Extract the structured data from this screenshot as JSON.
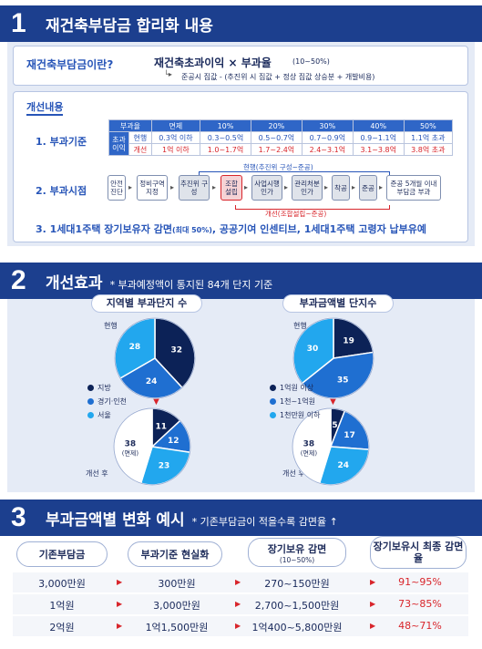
{
  "section1": {
    "num": "1",
    "title": "재건축부담금 합리화 내용",
    "definition_label": "재건축부담금이란?",
    "formula_main": "재건축초과이익 × 부과율",
    "formula_rate": "(10~50%)",
    "formula_note": "준공시 집값 - (추진위 시 집값 + 정상 집값 상승분 + 개발비용)",
    "improve_title": "개선내용",
    "item1_label": "1. 부과기준",
    "table": {
      "header": [
        "부과율",
        "면제",
        "10%",
        "20%",
        "30%",
        "40%",
        "50%"
      ],
      "row_group": "초과이익",
      "rows": [
        {
          "label": "현행",
          "cells": [
            "0.3억 이하",
            "0.3~0.5억",
            "0.5~0.7억",
            "0.7~0.9억",
            "0.9~1.1억",
            "1.1억 초과"
          ]
        },
        {
          "label": "개선",
          "cells": [
            "1억 이하",
            "1.0~1.7억",
            "1.7~2.4억",
            "2.4~3.1억",
            "3.1~3.8억",
            "3.8억 초과"
          ]
        }
      ]
    },
    "item2_label": "2. 부과시점",
    "current_note": "현행(추진위 구성~준공)",
    "revised_note": "개선(조합설립~준공)",
    "steps": [
      "안전 진단",
      "정비구역 지정",
      "추진위 구성",
      "조합 설립",
      "사업시행 인가",
      "관리처분 인가",
      "착공",
      "준공",
      "준공 5개월 이내 부담금 부과"
    ],
    "item3_text": "3. 1세대1주택 장기보유자 감면",
    "item3_small": "(최대 50%)",
    "item3_rest": ", 공공기여 인센티브, 1세대1주택 고령자 납부유예"
  },
  "section2": {
    "num": "2",
    "title": "개선효과",
    "subtitle": "* 부과예정액이 통지된 84개 단지 기준",
    "chart_left_title": "지역별 부과단지 수",
    "chart_right_title": "부과금액별 단지수",
    "label_current": "현행",
    "label_after": "개선 후",
    "exempt_label": "(면제)",
    "legend_left": [
      "지방",
      "경기·인천",
      "서울"
    ],
    "legend_right": [
      "1억원 이상",
      "1천~1억원",
      "1천만원 이하"
    ],
    "colors": {
      "navy": "#0c2257",
      "mid": "#1f6fd1",
      "light": "#22a7ee",
      "exempt": "#ffffff"
    }
  },
  "chart_data": [
    {
      "type": "pie",
      "title": "지역별 부과단지 수 (현행)",
      "labels": [
        "지방",
        "경기·인천",
        "서울"
      ],
      "values": [
        32,
        24,
        28
      ]
    },
    {
      "type": "pie",
      "title": "지역별 부과단지 수 (개선 후)",
      "labels": [
        "지방",
        "경기·인천",
        "서울",
        "면제"
      ],
      "values": [
        11,
        12,
        23,
        38
      ]
    },
    {
      "type": "pie",
      "title": "부과금액별 단지수 (현행)",
      "labels": [
        "1억원 이상",
        "1천~1억원",
        "1천만원 이하"
      ],
      "values": [
        19,
        35,
        30
      ]
    },
    {
      "type": "pie",
      "title": "부과금액별 단지수 (개선 후)",
      "labels": [
        "1억원 이상",
        "1천~1억원",
        "1천만원 이하",
        "면제"
      ],
      "values": [
        5,
        17,
        24,
        38
      ]
    }
  ],
  "section3": {
    "num": "3",
    "title": "부과금액별 변화 예시",
    "subtitle": "* 기존부담금이 적을수록 감면율 ↑",
    "headers": [
      "기존부담금",
      "부과기준 현실화",
      "장기보유 감면",
      "장기보유시 최종 감면율"
    ],
    "header_sub": "(10~50%)",
    "rows": [
      [
        "3,000만원",
        "300만원",
        "270~150만원",
        "91~95%"
      ],
      [
        "1억원",
        "3,000만원",
        "2,700~1,500만원",
        "73~85%"
      ],
      [
        "2억원",
        "1억1,500만원",
        "1억400~5,800만원",
        "48~71%"
      ]
    ]
  }
}
